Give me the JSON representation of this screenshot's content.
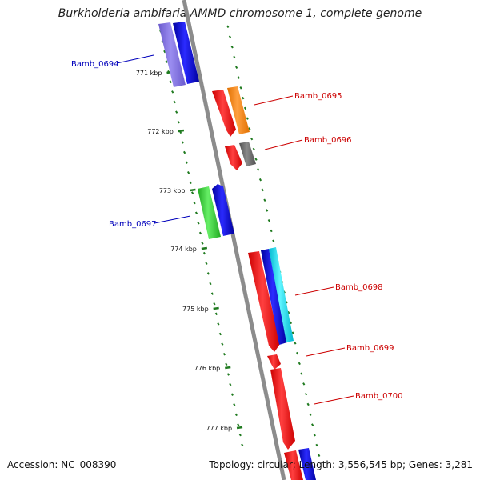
{
  "title": "Burkholderia ambifaria AMMD chromosome 1, complete genome",
  "footer": {
    "accession": "Accession: NC_008390",
    "summary": "Topology: circular; Length: 3,556,545 bp; Genes: 3,281"
  },
  "colors": {
    "backbone": "#8c8c8c",
    "tick": "#1f7a1f",
    "forward_label": "#cc0000",
    "reverse_label": "#0000bb"
  },
  "scale": {
    "unit": "kbp",
    "labels": [
      "771 kbp",
      "772 kbp",
      "773 kbp",
      "774 kbp",
      "775 kbp",
      "776 kbp",
      "777 kbp"
    ]
  },
  "genes": [
    {
      "name": "Bamb_0694",
      "strand": "reverse"
    },
    {
      "name": "Bamb_0695",
      "strand": "forward"
    },
    {
      "name": "Bamb_0696",
      "strand": "forward"
    },
    {
      "name": "Bamb_0697",
      "strand": "reverse"
    },
    {
      "name": "Bamb_0698",
      "strand": "forward"
    },
    {
      "name": "Bamb_0699",
      "strand": "forward"
    },
    {
      "name": "Bamb_0700",
      "strand": "forward"
    }
  ]
}
